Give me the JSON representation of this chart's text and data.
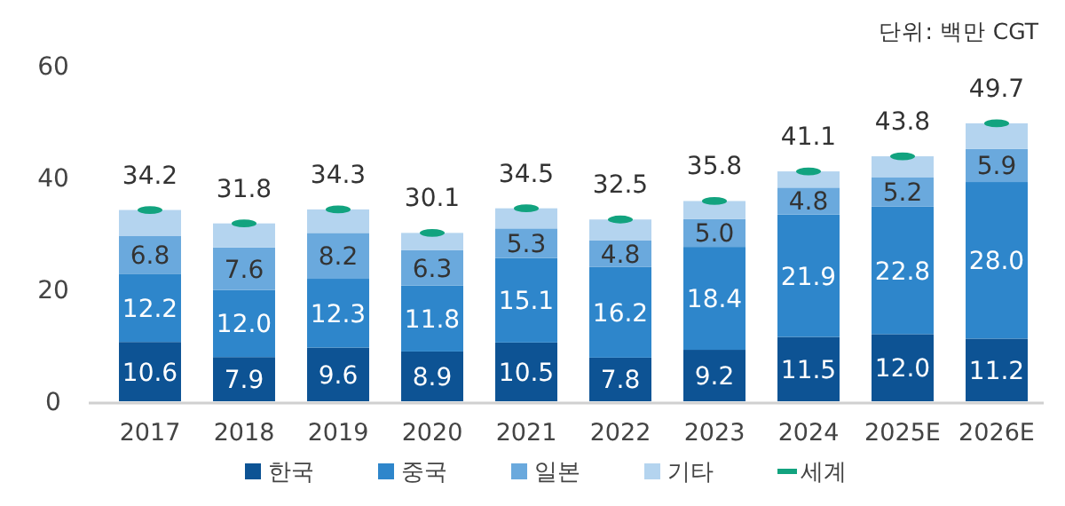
{
  "chart_data": {
    "type": "bar",
    "stacked": true,
    "annotations": [
      "단위: 백만 CGT"
    ],
    "categories": [
      "2017",
      "2018",
      "2019",
      "2020",
      "2021",
      "2022",
      "2023",
      "2024",
      "2025E",
      "2026E"
    ],
    "ylim": [
      0,
      60
    ],
    "yticks": [
      0,
      20,
      40,
      60
    ],
    "grid": false,
    "legend": "bottom",
    "series": [
      {
        "name": "한국",
        "color": "#0d5394",
        "values": [
          10.6,
          7.9,
          9.6,
          8.9,
          10.5,
          7.8,
          9.2,
          11.5,
          12.0,
          11.2
        ],
        "value_labels": [
          "10.6",
          "7.9",
          "9.6",
          "8.9",
          "10.5",
          "7.8",
          "9.2",
          "11.5",
          "12.0",
          "11.2"
        ]
      },
      {
        "name": "중국",
        "color": "#2e86cb",
        "values": [
          12.2,
          12.0,
          12.3,
          11.8,
          15.1,
          16.2,
          18.4,
          21.9,
          22.8,
          28.0
        ],
        "value_labels": [
          "12.2",
          "12.0",
          "12.3",
          "11.8",
          "15.1",
          "16.2",
          "18.4",
          "21.9",
          "22.8",
          "28.0"
        ]
      },
      {
        "name": "일본",
        "color": "#6aa9dd",
        "values": [
          6.8,
          7.6,
          8.2,
          6.3,
          5.3,
          4.8,
          5.0,
          4.8,
          5.2,
          5.9
        ],
        "value_labels": [
          "6.8",
          "7.6",
          "8.2",
          "6.3",
          "5.3",
          "4.8",
          "5.0",
          "4.8",
          "5.2",
          "5.9"
        ]
      },
      {
        "name": "기타",
        "color": "#b4d4ef",
        "values": [
          4.6,
          4.3,
          4.2,
          3.1,
          3.6,
          3.7,
          3.2,
          2.9,
          3.8,
          4.6
        ]
      },
      {
        "name": "세계",
        "type": "scatter",
        "color": "#12a37f",
        "values": [
          34.2,
          31.8,
          34.3,
          30.1,
          34.5,
          32.5,
          35.8,
          41.1,
          43.8,
          49.7
        ],
        "value_labels": [
          "34.2",
          "31.8",
          "34.3",
          "30.1",
          "34.5",
          "32.5",
          "35.8",
          "41.1",
          "43.8",
          "49.7"
        ]
      }
    ]
  }
}
